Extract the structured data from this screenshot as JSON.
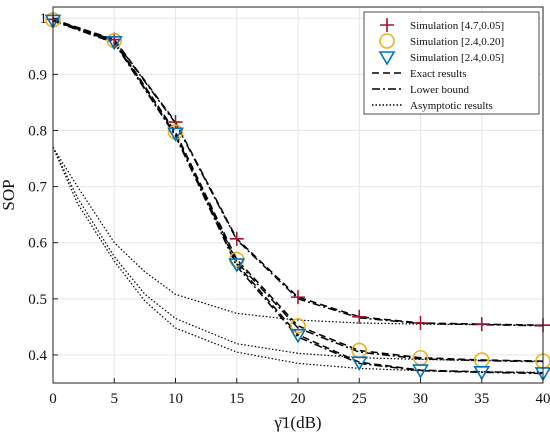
{
  "chart_data": {
    "type": "line",
    "title": "",
    "xlabel": "γ̄1(dB)",
    "ylabel": "SOP",
    "xlim": [
      0,
      40
    ],
    "ylim": [
      0.35,
      1.02
    ],
    "x_ticks": [
      "0",
      "5",
      "10",
      "15",
      "20",
      "25",
      "30",
      "35",
      "40"
    ],
    "y_ticks": [
      "0.4",
      "0.5",
      "0.6",
      "0.7",
      "0.8",
      "0.9",
      "1"
    ],
    "grid": true,
    "legend_position": "top-right",
    "x": [
      0,
      5,
      10,
      15,
      20,
      25,
      30,
      35,
      40
    ],
    "series": [
      {
        "name": "Simulation [4.7,0.05]",
        "kind": "marker",
        "marker": "plus",
        "color": "#a2142f",
        "values": [
          0.998,
          0.962,
          0.815,
          0.607,
          0.503,
          0.468,
          0.457,
          0.455,
          0.453
        ]
      },
      {
        "name": "Simulation [2.4,0.20]",
        "kind": "marker",
        "marker": "circle",
        "color": "#edb120",
        "values": [
          0.997,
          0.96,
          0.797,
          0.57,
          0.452,
          0.408,
          0.395,
          0.391,
          0.389
        ]
      },
      {
        "name": "Simulation [2.4,0.05]",
        "kind": "marker",
        "marker": "triangle-down",
        "color": "#0072bd",
        "values": [
          0.996,
          0.958,
          0.795,
          0.562,
          0.436,
          0.387,
          0.373,
          0.37,
          0.368
        ]
      },
      {
        "name": "Exact results",
        "kind": "line",
        "dash": "dashed",
        "color": "#000000",
        "curves": [
          [
            0.998,
            0.962,
            0.815,
            0.607,
            0.503,
            0.468,
            0.457,
            0.455,
            0.453
          ],
          [
            0.997,
            0.96,
            0.797,
            0.57,
            0.452,
            0.408,
            0.395,
            0.391,
            0.389
          ],
          [
            0.996,
            0.958,
            0.795,
            0.562,
            0.436,
            0.387,
            0.373,
            0.37,
            0.368
          ]
        ]
      },
      {
        "name": "Lower bound",
        "kind": "line",
        "dash": "dashdot",
        "color": "#000000",
        "curves": [
          [
            0.997,
            0.961,
            0.813,
            0.605,
            0.5,
            0.466,
            0.456,
            0.454,
            0.452
          ],
          [
            0.996,
            0.958,
            0.792,
            0.566,
            0.448,
            0.405,
            0.393,
            0.39,
            0.388
          ],
          [
            0.995,
            0.956,
            0.79,
            0.558,
            0.432,
            0.385,
            0.372,
            0.369,
            0.367
          ]
        ]
      },
      {
        "name": "Asymptotic results",
        "kind": "line",
        "dash": "dotted",
        "color": "#000000",
        "x_dense": [
          0,
          2,
          5,
          7.5,
          10,
          15,
          20,
          25,
          30,
          35,
          40
        ],
        "curves": [
          [
            0.77,
            0.7,
            0.6,
            0.548,
            0.508,
            0.474,
            0.462,
            0.457,
            0.455,
            0.454,
            0.453
          ],
          [
            0.77,
            0.68,
            0.575,
            0.508,
            0.465,
            0.42,
            0.403,
            0.395,
            0.392,
            0.39,
            0.389
          ],
          [
            0.77,
            0.67,
            0.567,
            0.496,
            0.448,
            0.405,
            0.385,
            0.376,
            0.372,
            0.37,
            0.369
          ]
        ]
      }
    ]
  }
}
